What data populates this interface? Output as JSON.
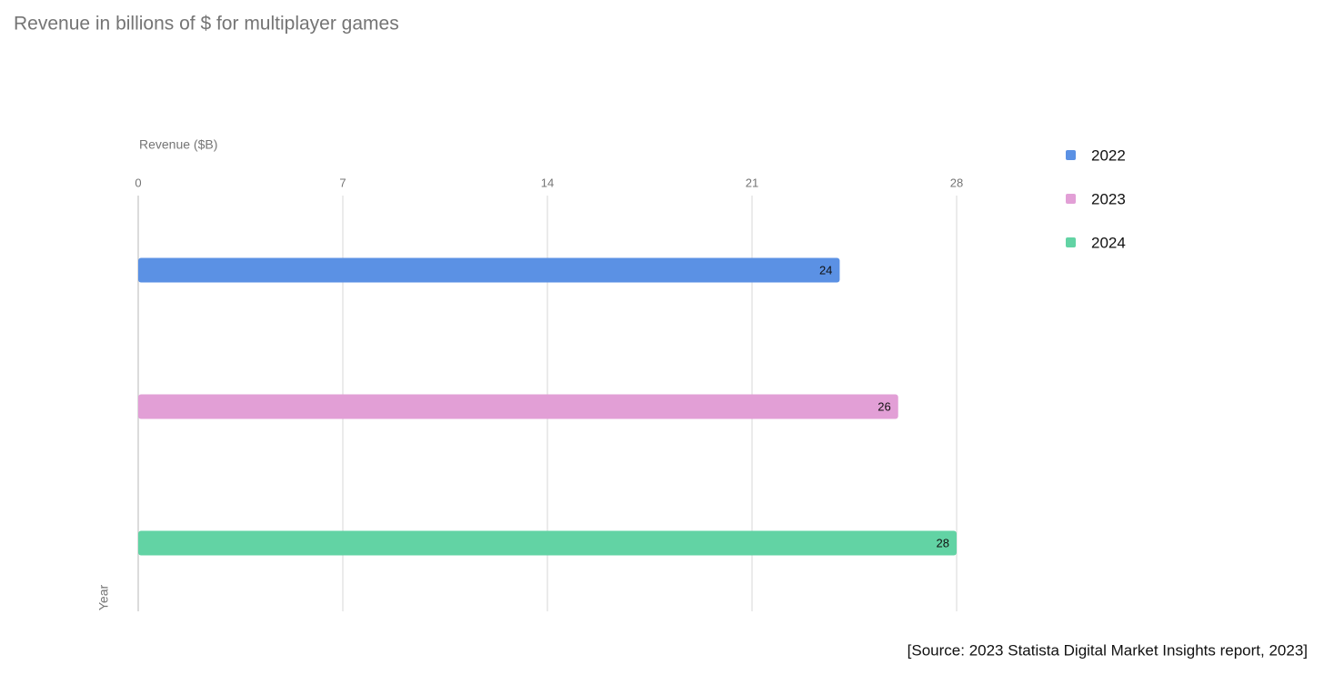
{
  "chart_data": {
    "type": "bar",
    "orientation": "horizontal",
    "title": "Revenue in billions of $ for multiplayer games",
    "x_label": "Revenue ($B)",
    "y_label": "Year",
    "series": [
      {
        "name": "2022",
        "color": "#5b91e4",
        "values": [
          24
        ]
      },
      {
        "name": "2023",
        "color": "#e29fd6",
        "values": [
          26
        ]
      },
      {
        "name": "2024",
        "color": "#62d3a4",
        "values": [
          28
        ]
      }
    ],
    "xlim": [
      0,
      28
    ],
    "xticks": [
      0,
      7,
      14,
      21,
      28
    ],
    "grid": true,
    "legend": "right",
    "source": "[Source: 2023 Statista Digital Market Insights report, 2023]"
  }
}
